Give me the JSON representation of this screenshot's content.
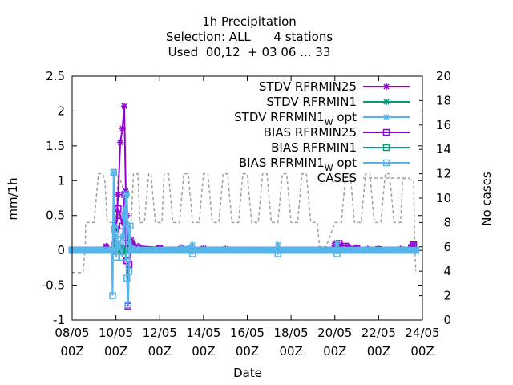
{
  "chart_data": {
    "type": "line",
    "title_lines": [
      "1h Precipitation",
      "Selection: ALL      4 stations",
      "Used  00,12  + 03 06 ... 33"
    ],
    "xlabel": "Date",
    "ylabel": "mm/1h",
    "y2label": "No cases",
    "x_ticks": [
      {
        "d": 0,
        "l1": "08/05",
        "l2": "00Z"
      },
      {
        "d": 2,
        "l1": "10/05",
        "l2": "00Z"
      },
      {
        "d": 4,
        "l1": "12/05",
        "l2": "00Z"
      },
      {
        "d": 6,
        "l1": "14/05",
        "l2": "00Z"
      },
      {
        "d": 8,
        "l1": "16/05",
        "l2": "00Z"
      },
      {
        "d": 10,
        "l1": "18/05",
        "l2": "00Z"
      },
      {
        "d": 12,
        "l1": "20/05",
        "l2": "00Z"
      },
      {
        "d": 14,
        "l1": "22/05",
        "l2": "00Z"
      },
      {
        "d": 16,
        "l1": "24/05",
        "l2": "00Z"
      }
    ],
    "xlim_days": [
      0,
      16
    ],
    "ylim": [
      -1,
      2.5
    ],
    "y_ticks": [
      "-1",
      "-0.5",
      "0",
      "0.5",
      "1",
      "1.5",
      "2",
      "2.5"
    ],
    "y2lim": [
      0,
      20
    ],
    "y2_ticks": [
      "0",
      "2",
      "4",
      "6",
      "8",
      "10",
      "12",
      "14",
      "16",
      "18",
      "20"
    ],
    "legend": [
      {
        "text": "STDV RFRMIN25",
        "color": "#9400d3",
        "marker": "star"
      },
      {
        "text": "STDV RFRMIN1",
        "color": "#009e73",
        "marker": "star"
      },
      {
        "text": "STDV RFRMIN1",
        "sub": "W",
        "tail": " opt",
        "color": "#56b4e9",
        "marker": "star"
      },
      {
        "text": "BIAS RFRMIN25",
        "color": "#9400d3",
        "marker": "square"
      },
      {
        "text": "BIAS RFRMIN1",
        "color": "#009e73",
        "marker": "square"
      },
      {
        "text": "BIAS RFRMIN1",
        "sub": "W",
        "tail": " opt",
        "color": "#56b4e9",
        "marker": "square"
      },
      {
        "text": "CASES",
        "color": "#a0a0a0",
        "marker": "dash"
      }
    ],
    "series": [
      {
        "key": "stdv25",
        "color": "#9400d3",
        "marker": "star",
        "axis": "y",
        "points": [
          [
            0,
            0
          ],
          [
            1.5,
            0
          ],
          [
            1.55,
            0.06
          ],
          [
            1.6,
            0
          ],
          [
            1.8,
            0
          ],
          [
            1.9,
            0.08
          ],
          [
            2.0,
            0.3
          ],
          [
            2.1,
            0.8
          ],
          [
            2.2,
            1.55
          ],
          [
            2.3,
            1.75
          ],
          [
            2.38,
            2.07
          ],
          [
            2.45,
            0.85
          ],
          [
            2.5,
            0.5
          ],
          [
            2.55,
            0.1
          ],
          [
            2.6,
            0.05
          ],
          [
            2.7,
            0.15
          ],
          [
            2.8,
            0.08
          ],
          [
            3.0,
            0.06
          ],
          [
            4,
            0.04
          ],
          [
            5,
            0.04
          ],
          [
            6,
            0.03
          ],
          [
            7,
            0.02
          ],
          [
            8,
            0
          ],
          [
            11.8,
            0
          ],
          [
            12,
            0.1
          ],
          [
            12.2,
            0.08
          ],
          [
            12.6,
            0.06
          ],
          [
            13,
            0.04
          ],
          [
            13.5,
            0.02
          ],
          [
            14,
            0.02
          ],
          [
            15,
            0.02
          ],
          [
            15.5,
            0.04
          ],
          [
            15.6,
            0.08
          ],
          [
            15.7,
            0
          ]
        ]
      },
      {
        "key": "stdv1",
        "color": "#009e73",
        "marker": "star",
        "axis": "y",
        "points": [
          [
            0,
            0
          ],
          [
            1.9,
            0
          ],
          [
            2.0,
            0.2
          ],
          [
            2.05,
            0.1
          ],
          [
            2.1,
            0.08
          ],
          [
            2.2,
            0.05
          ],
          [
            2.3,
            0
          ],
          [
            15.7,
            0
          ]
        ]
      },
      {
        "key": "stdv1w",
        "color": "#56b4e9",
        "marker": "star",
        "axis": "y",
        "points": [
          [
            0,
            0
          ],
          [
            1.85,
            0
          ],
          [
            1.9,
            1.12
          ],
          [
            1.95,
            0.35
          ],
          [
            2.0,
            0.2
          ],
          [
            2.05,
            0.1
          ],
          [
            2.1,
            0.05
          ],
          [
            2.3,
            0.2
          ],
          [
            2.4,
            0.6
          ],
          [
            2.5,
            0.8
          ],
          [
            2.55,
            0.35
          ],
          [
            2.6,
            0.1
          ],
          [
            3.0,
            0.02
          ],
          [
            5,
            0.03
          ],
          [
            5.5,
            0.08
          ],
          [
            5.6,
            0
          ],
          [
            9.3,
            0
          ],
          [
            9.4,
            0.08
          ],
          [
            9.5,
            0
          ],
          [
            12,
            0
          ],
          [
            12.1,
            0.1
          ],
          [
            12.2,
            0
          ],
          [
            15.7,
            0
          ]
        ]
      },
      {
        "key": "bias25",
        "color": "#9400d3",
        "marker": "square",
        "axis": "y",
        "points": [
          [
            0,
            0
          ],
          [
            1.8,
            0
          ],
          [
            2.0,
            0.3
          ],
          [
            2.1,
            0.6
          ],
          [
            2.2,
            0.5
          ],
          [
            2.3,
            0.35
          ],
          [
            2.4,
            0.8
          ],
          [
            2.45,
            0.1
          ],
          [
            2.5,
            -0.15
          ],
          [
            2.55,
            -0.8
          ],
          [
            2.6,
            -0.2
          ],
          [
            2.7,
            0.08
          ],
          [
            3,
            0.03
          ],
          [
            4,
            0.02
          ],
          [
            5,
            0.01
          ],
          [
            8,
            0
          ],
          [
            12,
            0.02
          ],
          [
            12.2,
            0.1
          ],
          [
            12.5,
            0.06
          ],
          [
            13,
            0.03
          ],
          [
            14,
            0.01
          ],
          [
            15.5,
            0.04
          ],
          [
            15.6,
            0.08
          ],
          [
            15.7,
            0
          ]
        ]
      },
      {
        "key": "bias1",
        "color": "#009e73",
        "marker": "square",
        "axis": "y",
        "points": [
          [
            0,
            0
          ],
          [
            1.9,
            0
          ],
          [
            2.0,
            0.05
          ],
          [
            2.1,
            0.02
          ],
          [
            2.3,
            0
          ],
          [
            15.7,
            0
          ]
        ]
      },
      {
        "key": "bias1w",
        "color": "#56b4e9",
        "marker": "square",
        "axis": "y",
        "points": [
          [
            0,
            0
          ],
          [
            1.8,
            0
          ],
          [
            1.85,
            -0.65
          ],
          [
            1.9,
            1.12
          ],
          [
            1.95,
            0.3
          ],
          [
            2.0,
            -0.1
          ],
          [
            2.1,
            0.15
          ],
          [
            2.2,
            0.05
          ],
          [
            2.3,
            -0.1
          ],
          [
            2.4,
            0.5
          ],
          [
            2.45,
            0.8
          ],
          [
            2.5,
            -0.4
          ],
          [
            2.55,
            -0.78
          ],
          [
            2.6,
            -0.3
          ],
          [
            2.65,
            0.35
          ],
          [
            2.7,
            0
          ],
          [
            5,
            0
          ],
          [
            5.5,
            -0.05
          ],
          [
            5.6,
            0
          ],
          [
            9.3,
            0
          ],
          [
            9.4,
            -0.05
          ],
          [
            9.5,
            0
          ],
          [
            12,
            0
          ],
          [
            12.1,
            -0.05
          ],
          [
            12.2,
            0
          ],
          [
            15.7,
            0
          ]
        ]
      },
      {
        "key": "cases",
        "color": "#a0a0a0",
        "marker": "none",
        "dashed": true,
        "axis": "y2",
        "points": [
          [
            0,
            3.9
          ],
          [
            0.5,
            3.9
          ],
          [
            0.6,
            6
          ],
          [
            0.62,
            8
          ],
          [
            1.0,
            8
          ],
          [
            1.2,
            12
          ],
          [
            1.4,
            12
          ],
          [
            1.5,
            11.3
          ],
          [
            1.6,
            8
          ],
          [
            2.0,
            8
          ],
          [
            2.1,
            12
          ],
          [
            2.3,
            11
          ],
          [
            2.4,
            8
          ],
          [
            2.7,
            8
          ],
          [
            2.8,
            12
          ],
          [
            3.0,
            12
          ],
          [
            3.1,
            8
          ],
          [
            3.3,
            8
          ],
          [
            3.5,
            12
          ],
          [
            3.6,
            12
          ],
          [
            3.8,
            8
          ],
          [
            4.1,
            8
          ],
          [
            4.2,
            12
          ],
          [
            4.4,
            12
          ],
          [
            4.6,
            8
          ],
          [
            4.9,
            8
          ],
          [
            5.1,
            12
          ],
          [
            5.3,
            12
          ],
          [
            5.5,
            8
          ],
          [
            5.8,
            8
          ],
          [
            6.0,
            12
          ],
          [
            6.2,
            12
          ],
          [
            6.4,
            8
          ],
          [
            6.7,
            8
          ],
          [
            6.9,
            12
          ],
          [
            7.1,
            12
          ],
          [
            7.3,
            8
          ],
          [
            7.6,
            8
          ],
          [
            7.8,
            12
          ],
          [
            8.0,
            12
          ],
          [
            8.2,
            8
          ],
          [
            8.5,
            8
          ],
          [
            8.7,
            12
          ],
          [
            8.9,
            12
          ],
          [
            9.1,
            8
          ],
          [
            9.4,
            8
          ],
          [
            9.6,
            12
          ],
          [
            9.8,
            12
          ],
          [
            10.0,
            8
          ],
          [
            10.3,
            8
          ],
          [
            10.5,
            12
          ],
          [
            10.7,
            12
          ],
          [
            10.9,
            8
          ],
          [
            11.2,
            8
          ],
          [
            11.3,
            6
          ],
          [
            11.6,
            6
          ],
          [
            11.8,
            7
          ],
          [
            12.0,
            8
          ],
          [
            12.3,
            8
          ],
          [
            12.5,
            12
          ],
          [
            12.7,
            12
          ],
          [
            12.9,
            8
          ],
          [
            13.2,
            8
          ],
          [
            13.4,
            12
          ],
          [
            13.6,
            12
          ],
          [
            13.8,
            8
          ],
          [
            14.1,
            8
          ],
          [
            14.3,
            12
          ],
          [
            14.5,
            12
          ],
          [
            14.7,
            8
          ],
          [
            15.0,
            8
          ],
          [
            15.1,
            11.5
          ],
          [
            15.6,
            11.5
          ],
          [
            15.65,
            6
          ],
          [
            15.7,
            4
          ]
        ]
      }
    ]
  }
}
